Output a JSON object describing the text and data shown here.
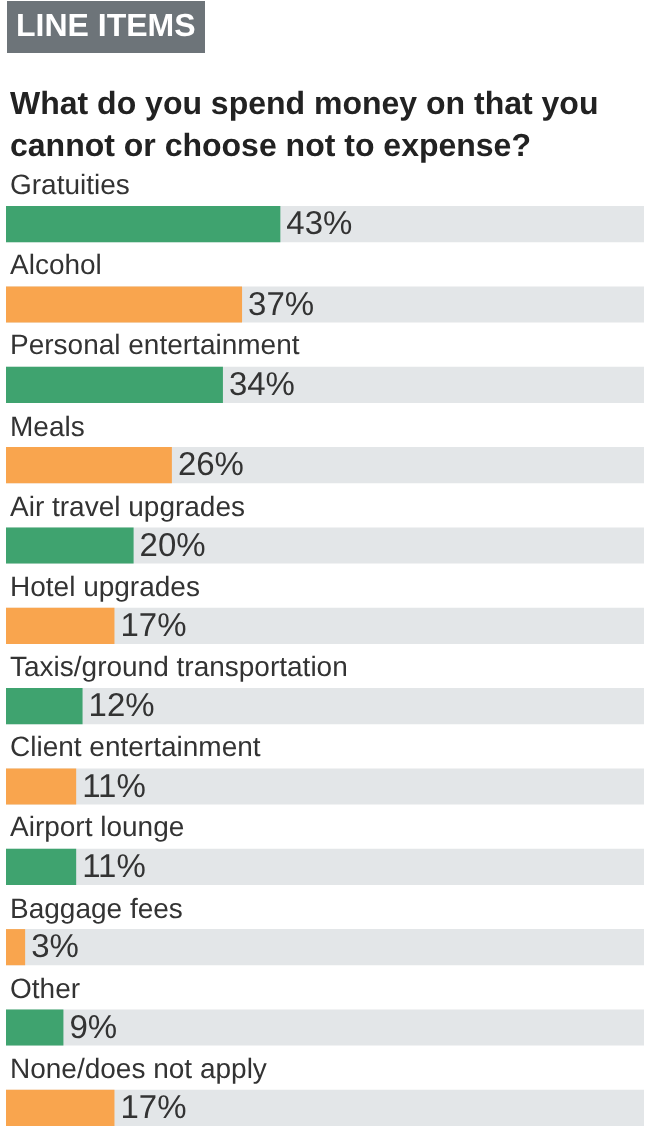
{
  "chart_data": {
    "type": "bar",
    "orientation": "horizontal",
    "title": "LINE ITEMS",
    "subtitle": "What do you spend money on that you cannot or choose not to expense?",
    "categories": [
      "Gratuities",
      "Alcohol",
      "Personal entertainment",
      "Meals",
      "Air travel upgrades",
      "Hotel upgrades",
      "Taxis/ground transportation",
      "Client entertainment",
      "Airport lounge",
      "Baggage fees",
      "Other",
      "None/does not apply"
    ],
    "values": [
      43,
      37,
      34,
      26,
      20,
      17,
      12,
      11,
      11,
      3,
      9,
      17
    ],
    "value_labels": [
      "43%",
      "37%",
      "34%",
      "26%",
      "20%",
      "17%",
      "12%",
      "11%",
      "11%",
      "3%",
      "9%",
      "17%"
    ],
    "colors": [
      "#3fa36f",
      "#f9a54e",
      "#3fa36f",
      "#f9a54e",
      "#3fa36f",
      "#f9a54e",
      "#3fa36f",
      "#f9a54e",
      "#3fa36f",
      "#f9a54e",
      "#3fa36f",
      "#f9a54e"
    ],
    "xlim": [
      0,
      100
    ],
    "tick_labels": false
  }
}
